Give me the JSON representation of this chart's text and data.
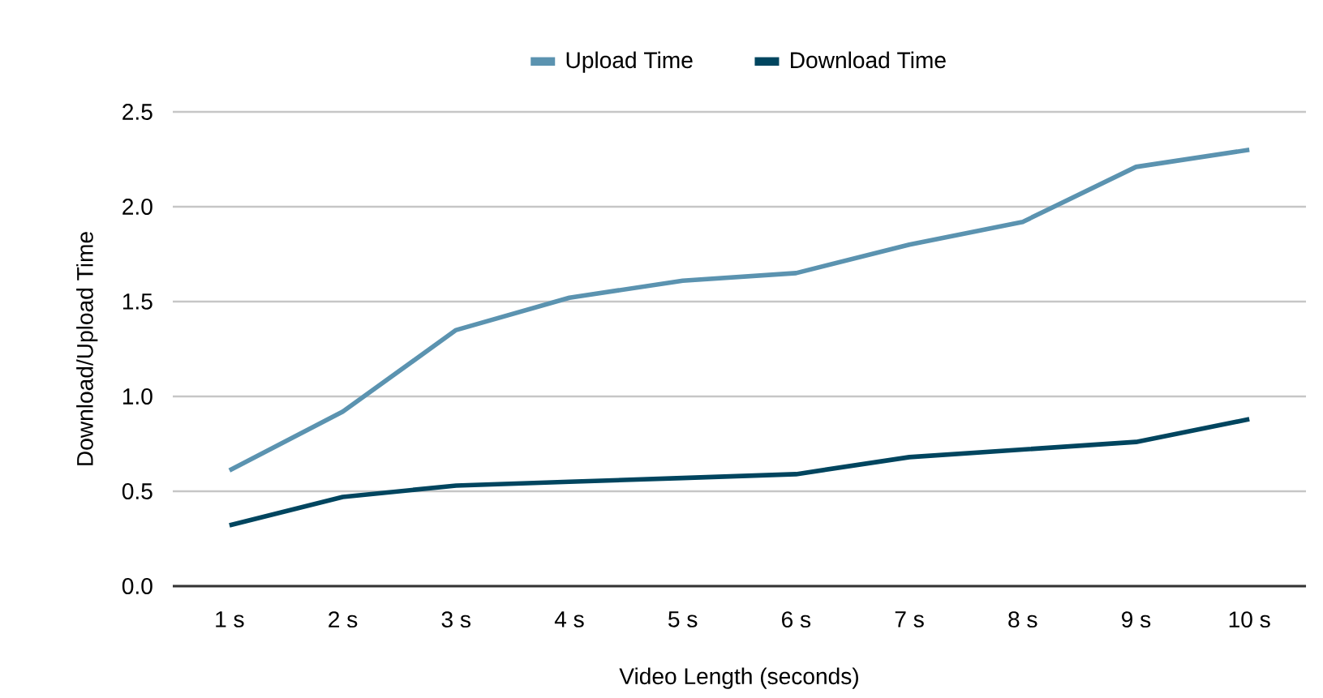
{
  "chart_data": {
    "type": "line",
    "xlabel": "Video Length (seconds)",
    "ylabel": "Download/Upload Time",
    "categories": [
      "1 s",
      "2 s",
      "3 s",
      "4 s",
      "5 s",
      "6 s",
      "7 s",
      "8 s",
      "9 s",
      "10 s"
    ],
    "series": [
      {
        "name": "Upload Time",
        "color": "#5b93b0",
        "values": [
          0.61,
          0.92,
          1.35,
          1.52,
          1.61,
          1.65,
          1.8,
          1.92,
          2.21,
          2.3
        ]
      },
      {
        "name": "Download Time",
        "color": "#00455f",
        "values": [
          0.32,
          0.47,
          0.53,
          0.55,
          0.57,
          0.59,
          0.68,
          0.72,
          0.76,
          0.88
        ]
      }
    ],
    "ylim": [
      0,
      2.5
    ],
    "yticks": [
      {
        "value": 0,
        "label": "0.0"
      },
      {
        "value": 0.5,
        "label": "0.5"
      },
      {
        "value": 1,
        "label": "1.0"
      },
      {
        "value": 1.5,
        "label": "1.5"
      },
      {
        "value": 2,
        "label": "2.0"
      },
      {
        "value": 2.5,
        "label": "2.5"
      }
    ],
    "grid": "y",
    "legend": "top"
  }
}
